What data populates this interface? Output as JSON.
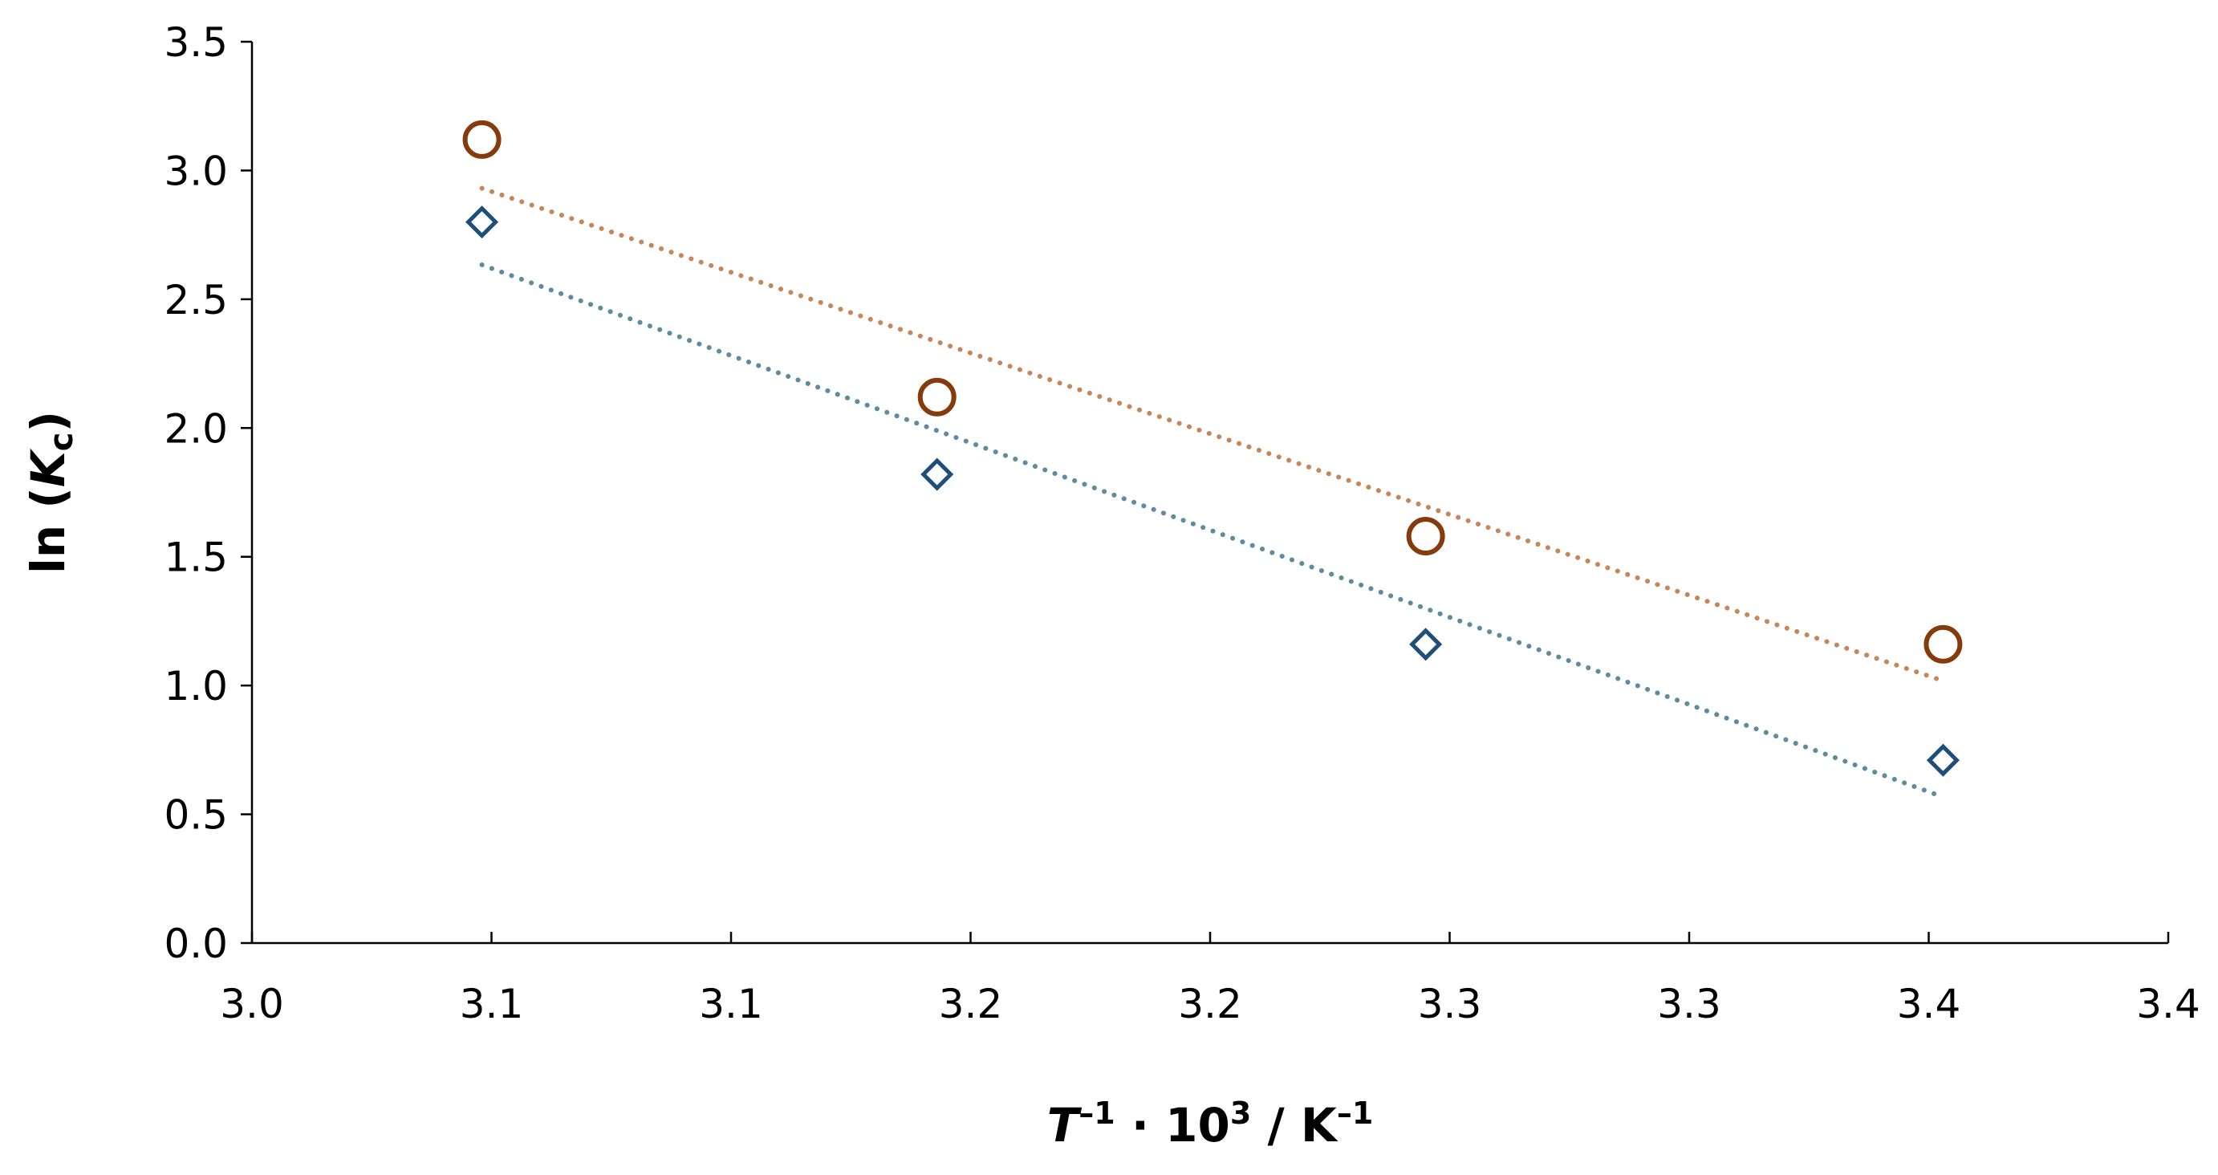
{
  "chart_data": {
    "type": "scatter",
    "title": "",
    "xlabel": {
      "base": "T",
      "sup1": "–1",
      "middle": " · 10",
      "sup2": "3",
      "unit": " / K",
      "sup3": "–1"
    },
    "ylabel": {
      "prefix": "ln (",
      "base": "K",
      "sub": "c",
      "suffix": ")"
    },
    "xlim": [
      3.05,
      3.45
    ],
    "ylim": [
      0.0,
      3.5
    ],
    "grid": false,
    "legend": "none",
    "x_tick_labels": [
      "3.0",
      "3.1",
      "3.1",
      "3.2",
      "3.2",
      "3.3",
      "3.3",
      "3.4",
      "3.4"
    ],
    "y_tick_labels": [
      "0.0",
      "0.5",
      "1.0",
      "1.5",
      "2.0",
      "2.5",
      "3.0",
      "3.5"
    ],
    "series": [
      {
        "marker": "circle",
        "color": "#843c0c",
        "trendline_color": "#c5875a",
        "x": [
          3.098,
          3.193,
          3.295,
          3.403
        ],
        "y": [
          3.12,
          2.12,
          1.58,
          1.16
        ]
      },
      {
        "marker": "diamond",
        "color": "#1f4e79",
        "trendline_color": "#5f8c9c",
        "x": [
          3.098,
          3.193,
          3.295,
          3.403
        ],
        "y": [
          2.8,
          1.82,
          1.16,
          0.71
        ]
      }
    ]
  }
}
